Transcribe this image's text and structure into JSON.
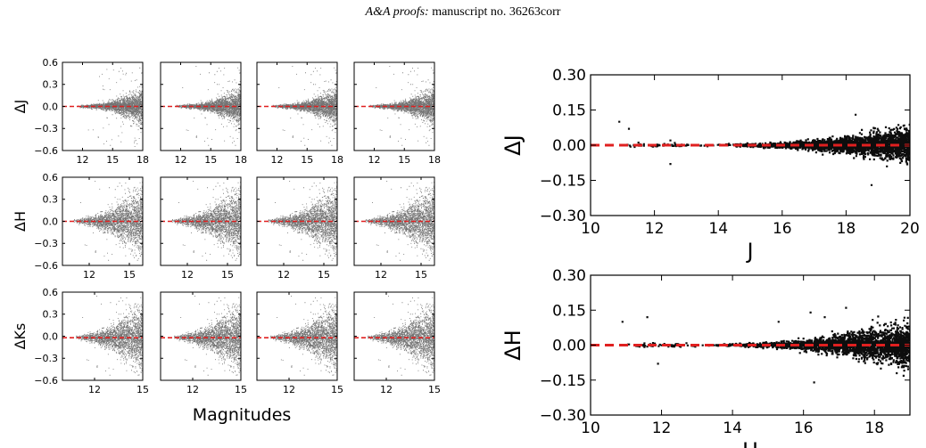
{
  "header": {
    "journal": "A&A proofs:",
    "manuscript": "manuscript no. 36263corr"
  },
  "colors": {
    "points": "#000000",
    "zero_line": "#e02020"
  },
  "chart_data": [
    {
      "type": "scatter",
      "panel": "left-grid",
      "rows": [
        {
          "ylabel": "ΔJ",
          "ylim": [
            -0.6,
            0.6
          ],
          "yticks": [
            "0.6",
            "0.3",
            "0.0",
            "−0.3",
            "−0.6"
          ],
          "xlim": [
            10,
            18
          ],
          "xticks": [
            "12",
            "15",
            "18"
          ],
          "zero_line": 0.0
        },
        {
          "ylabel": "ΔH",
          "ylim": [
            -0.6,
            0.6
          ],
          "yticks": [
            "0.6",
            "0.3",
            "0.0",
            "−0.3",
            "−0.6"
          ],
          "xlim": [
            10,
            16
          ],
          "xticks": [
            "12",
            "15"
          ],
          "zero_line": 0.0
        },
        {
          "ylabel": "ΔKs",
          "ylim": [
            -0.6,
            0.6
          ],
          "yticks": [
            "0.6",
            "0.3",
            "0.0",
            "−0.3",
            "−0.6"
          ],
          "xlim": [
            10,
            15
          ],
          "xticks": [
            "12",
            "15"
          ],
          "zero_line": -0.02
        }
      ],
      "columns": 4,
      "xlabel": "Magnitudes"
    },
    {
      "type": "scatter",
      "panel": "right-top",
      "xlabel": "J",
      "ylabel": "ΔJ",
      "xlim": [
        10,
        20
      ],
      "ylim": [
        -0.3,
        0.3
      ],
      "xticks": [
        "10",
        "12",
        "14",
        "16",
        "18",
        "20"
      ],
      "yticks": [
        "0.30",
        "0.15",
        "0.00",
        "−0.15",
        "−0.30"
      ],
      "zero_line": 0.0,
      "outliers": [
        [
          10.9,
          0.1
        ],
        [
          11.2,
          0.07
        ],
        [
          12.5,
          -0.08
        ],
        [
          12.5,
          0.02
        ],
        [
          18.3,
          0.13
        ],
        [
          18.8,
          -0.17
        ]
      ]
    },
    {
      "type": "scatter",
      "panel": "right-bottom",
      "xlabel": "H",
      "ylabel": "ΔH",
      "xlim": [
        10,
        19
      ],
      "ylim": [
        -0.3,
        0.3
      ],
      "xticks": [
        "10",
        "12",
        "14",
        "16",
        "18"
      ],
      "yticks": [
        "0.30",
        "0.15",
        "0.00",
        "−0.15",
        "−0.30"
      ],
      "zero_line": 0.0,
      "outliers": [
        [
          10.9,
          0.1
        ],
        [
          11.6,
          0.12
        ],
        [
          11.9,
          -0.08
        ],
        [
          15.3,
          0.1
        ],
        [
          16.2,
          0.14
        ],
        [
          16.3,
          -0.16
        ],
        [
          16.6,
          0.12
        ],
        [
          17.2,
          0.16
        ]
      ]
    }
  ]
}
